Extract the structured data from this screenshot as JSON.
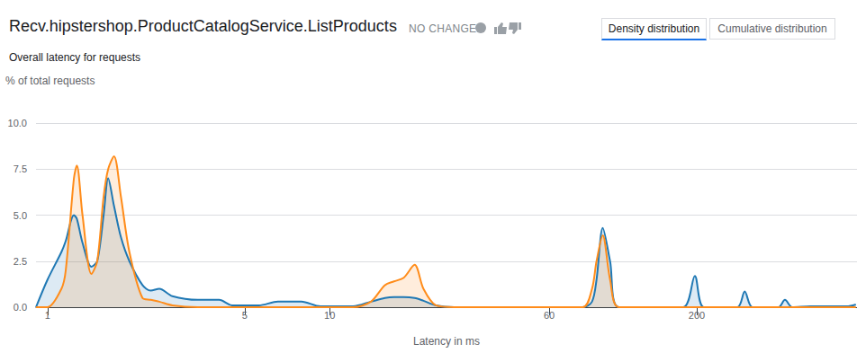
{
  "chart_data": {
    "type": "area",
    "title": "Recv.hipstershop.ProductCatalogService.ListProducts",
    "subtitle": "Overall latency for requests",
    "annotations": [
      "NO CHANGE",
      "Density distribution",
      "Cumulative distribution"
    ],
    "x_label": "Latency in ms",
    "y_label": "% of total requests",
    "x": [
      0.91,
      1.0,
      1.12,
      1.16,
      1.24,
      1.27,
      1.33,
      1.43,
      1.5,
      1.58,
      1.64,
      1.72,
      1.82,
      1.95,
      2.17,
      2.32,
      2.49,
      2.77,
      3.41,
      4.06,
      4.51,
      5.61,
      6.55,
      7.94,
      9.27,
      12.1,
      14.0,
      15.7,
      16.9,
      18.3,
      20.0,
      21.5,
      23.8,
      27.6,
      78.9,
      85.1,
      88.3,
      92.9,
      98.6,
      106,
      179,
      197,
      212,
      279,
      296,
      315,
      390,
      411,
      436,
      506,
      681,
      733
    ],
    "series": [
      {
        "color": "#1f78b4",
        "values": [
          0,
          1.5,
          3.0,
          3.6,
          5.0,
          4.8,
          3.5,
          2.2,
          2.5,
          5.0,
          7.0,
          5.5,
          3.8,
          2.5,
          1.2,
          0.9,
          1.0,
          0.6,
          0.4,
          0.4,
          0.1,
          0.1,
          0.3,
          0.3,
          0.05,
          0.05,
          0.3,
          0.5,
          0.55,
          0.55,
          0.5,
          0.35,
          0.1,
          0,
          0,
          0.3,
          1.5,
          4.3,
          2.5,
          0,
          0,
          1.7,
          0,
          0,
          0.85,
          0,
          0,
          0.4,
          0,
          0.05,
          0.05,
          0.15
        ]
      },
      {
        "color": "#ff8c1a",
        "values": [
          0,
          0,
          1.0,
          2.0,
          7.0,
          7.7,
          5.0,
          1.8,
          2.5,
          6.0,
          7.5,
          8.2,
          6.0,
          3.0,
          0.5,
          0.4,
          0.3,
          0.1,
          0,
          0,
          0,
          0,
          0,
          0,
          0,
          0,
          0.3,
          1.2,
          1.4,
          1.6,
          2.3,
          1.0,
          0.1,
          0,
          0,
          1.0,
          2.5,
          3.9,
          1.5,
          0,
          0,
          0,
          0,
          0,
          0,
          0,
          0,
          0,
          0,
          0,
          0,
          0
        ]
      }
    ],
    "xlim": [
      0.91,
      740
    ],
    "xticks": [
      1,
      5,
      10,
      60,
      200
    ],
    "ylim": [
      0,
      10
    ],
    "yticks": [
      {
        "value": 0,
        "label": "0.0"
      },
      2.5,
      {
        "value": 5,
        "label": "5.0"
      },
      7.5,
      {
        "value": 10,
        "label": "10.0"
      }
    ],
    "log": "x",
    "grid": true
  }
}
